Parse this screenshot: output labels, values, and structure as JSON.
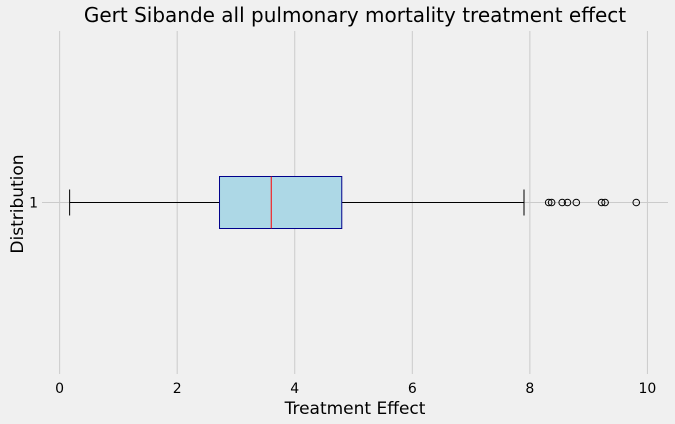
{
  "chart_data": {
    "type": "boxplot",
    "title": "Gert Sibande all pulmonary mortality treatment effect",
    "xlabel": "Treatment Effect",
    "ylabel": "Distribution",
    "orientation": "horizontal",
    "xlim": [
      -0.3,
      10.35
    ],
    "xticks": [
      0,
      2,
      4,
      6,
      8,
      10
    ],
    "grid": "vertical",
    "series": [
      {
        "name": "1",
        "whisker_low": 0.17,
        "q1": 2.72,
        "median": 3.6,
        "q3": 4.8,
        "whisker_high": 7.9,
        "outliers": [
          8.32,
          8.37,
          8.55,
          8.64,
          8.79,
          9.22,
          9.28,
          9.81
        ]
      }
    ],
    "colors": {
      "background": "#f0f0f0",
      "box_fill": "#add8e6",
      "box_edge": "#00008b",
      "median": "#ff0000",
      "whisker": "#000000",
      "grid": "#cbcbcb"
    }
  }
}
